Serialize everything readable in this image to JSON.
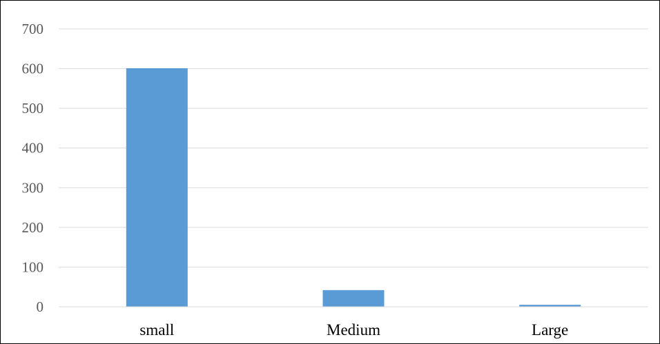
{
  "chart_data": {
    "type": "bar",
    "title": "",
    "xlabel": "",
    "ylabel": "",
    "categories": [
      "small",
      "Medium",
      "Large"
    ],
    "values": [
      601,
      42,
      5
    ],
    "ylim": [
      0,
      700
    ],
    "yticks": [
      "0",
      "100",
      "200",
      "300",
      "400",
      "500",
      "600",
      "700"
    ],
    "grid": true,
    "legend": "none",
    "bar_color": "#5B9BD5",
    "grid_color": "#D9D9D9"
  }
}
